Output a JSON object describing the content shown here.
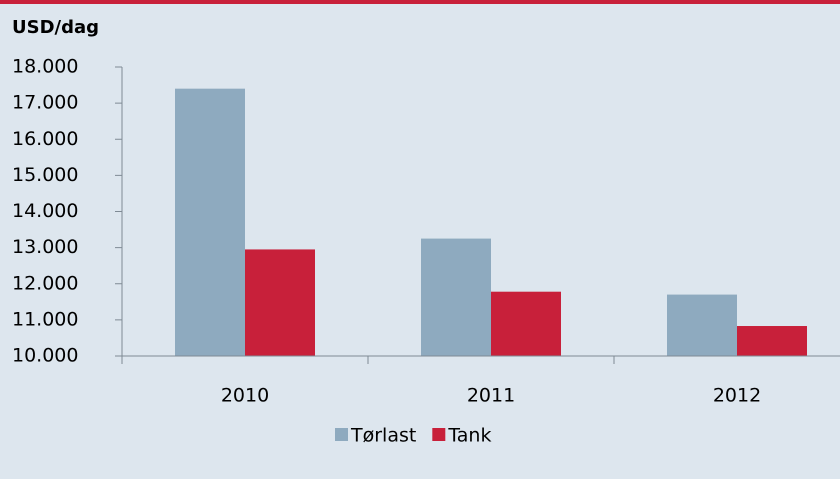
{
  "chart_data": {
    "type": "bar",
    "title": "USD/dag",
    "categories": [
      "2010",
      "2011",
      "2012"
    ],
    "series": [
      {
        "name": "Tørlast",
        "color": "#8eaabf",
        "values": [
          17400,
          13250,
          11700
        ]
      },
      {
        "name": "Tank",
        "color": "#c8203a",
        "values": [
          12950,
          11780,
          10830
        ]
      }
    ],
    "ylim": [
      10000,
      18000
    ],
    "yticks": [
      {
        "value": 10000,
        "label": "10.000"
      },
      {
        "value": 11000,
        "label": "11.000"
      },
      {
        "value": 12000,
        "label": "12.000"
      },
      {
        "value": 13000,
        "label": "13.000"
      },
      {
        "value": 14000,
        "label": "14.000"
      },
      {
        "value": 15000,
        "label": "15.000"
      },
      {
        "value": 16000,
        "label": "16.000"
      },
      {
        "value": 17000,
        "label": "17.000"
      },
      {
        "value": 18000,
        "label": "18.000"
      }
    ],
    "legend": "bottom"
  }
}
